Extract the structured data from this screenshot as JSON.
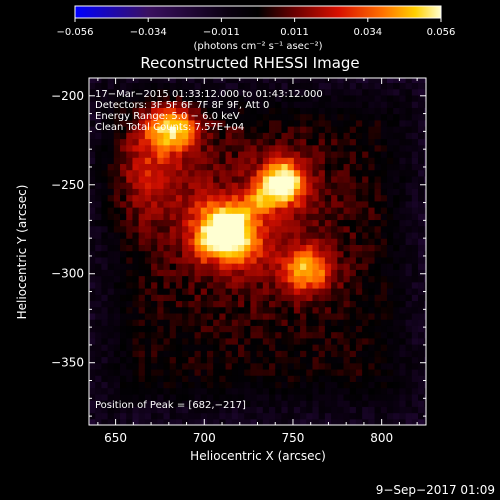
{
  "chart_data": {
    "type": "heatmap",
    "title": "Reconstructed RHESSI Image",
    "xlabel": "Heliocentric X (arcsec)",
    "ylabel": "Heliocentric Y (arcsec)",
    "xlim": [
      635,
      825
    ],
    "ylim": [
      -385,
      -190
    ],
    "xticks": [
      650,
      700,
      750,
      800
    ],
    "yticks": [
      -200,
      -250,
      -300,
      -350
    ],
    "colorbar": {
      "label": "(photons cm⁻² s⁻¹ asec⁻²)",
      "min": -0.056,
      "max": 0.056,
      "tick_labels": [
        "−0.056",
        "−0.034",
        "−0.011",
        "0.011",
        "0.034",
        "0.056"
      ],
      "colormap": [
        "#0000ff",
        "#1e0040",
        "#000000",
        "#600000",
        "#c00000",
        "#ff6000",
        "#ffc000",
        "#ffffc8"
      ]
    },
    "annotations": [
      "17−Mar−2015 01:33:12.000 to 01:43:12.000",
      "Detectors: 3F 5F 6F 7F 8F 9F, Att 0",
      "Energy Range: 5.0 − 6.0 keV",
      "Clean    Total Counts: 7.57E+04"
    ],
    "peak_label": "Position of Peak = [682,−217]",
    "sources": [
      {
        "x": 682,
        "y": -217,
        "intensity": 0.056
      },
      {
        "x": 718,
        "y": -282,
        "intensity": 0.052
      },
      {
        "x": 745,
        "y": -250,
        "intensity": 0.048
      },
      {
        "x": 758,
        "y": -298,
        "intensity": 0.05
      },
      {
        "x": 705,
        "y": -270,
        "intensity": 0.035
      }
    ]
  },
  "footer": {
    "date": "9−Sep−2017 01:09"
  }
}
